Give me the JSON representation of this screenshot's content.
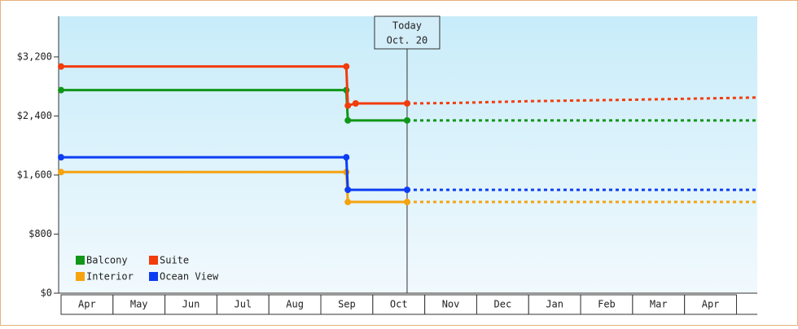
{
  "chart_data": {
    "type": "line",
    "xlim": [
      0,
      13.4
    ],
    "xticks": [
      {
        "value": 0.5,
        "label": "Apr"
      },
      {
        "value": 1.5,
        "label": "May"
      },
      {
        "value": 2.5,
        "label": "Jun"
      },
      {
        "value": 3.5,
        "label": "Jul"
      },
      {
        "value": 4.5,
        "label": "Aug"
      },
      {
        "value": 5.5,
        "label": "Sep"
      },
      {
        "value": 6.5,
        "label": "Oct"
      },
      {
        "value": 7.5,
        "label": "Nov"
      },
      {
        "value": 8.5,
        "label": "Dec"
      },
      {
        "value": 9.5,
        "label": "Jan"
      },
      {
        "value": 10.5,
        "label": "Feb"
      },
      {
        "value": 11.5,
        "label": "Mar"
      },
      {
        "value": 12.5,
        "label": "Apr"
      }
    ],
    "ylim": [
      0,
      3750
    ],
    "yticks": [
      {
        "value": 0,
        "label": "$0"
      },
      {
        "value": 800,
        "label": "$800"
      },
      {
        "value": 1600,
        "label": "$1,600"
      },
      {
        "value": 2400,
        "label": "$2,400"
      },
      {
        "value": 3200,
        "label": "$3,200"
      }
    ],
    "today": {
      "x": 6.66,
      "label": "Today",
      "date": "Oct. 20"
    },
    "legend": "lower left",
    "series": [
      {
        "name": "Balcony",
        "color": "#109618",
        "x": [
          0,
          5.49,
          5.52,
          6.66,
          13.4
        ],
        "values": [
          2750,
          2750,
          2340,
          2340,
          2340
        ]
      },
      {
        "name": "Suite",
        "color": "#f23c0c",
        "x": [
          0,
          5.49,
          5.52,
          5.67,
          6.66,
          7.5,
          9,
          11,
          13.4
        ],
        "values": [
          3070,
          3070,
          2540,
          2570,
          2570,
          2575,
          2600,
          2620,
          2650
        ]
      },
      {
        "name": "Interior",
        "color": "#f5a30f",
        "x": [
          0,
          5.49,
          5.52,
          6.66,
          13.4
        ],
        "values": [
          1640,
          1640,
          1235,
          1235,
          1235
        ]
      },
      {
        "name": "Ocean View",
        "color": "#0d3df2",
        "x": [
          0,
          5.49,
          5.52,
          6.66,
          13.4
        ],
        "values": [
          1840,
          1840,
          1400,
          1400,
          1400
        ]
      }
    ]
  }
}
